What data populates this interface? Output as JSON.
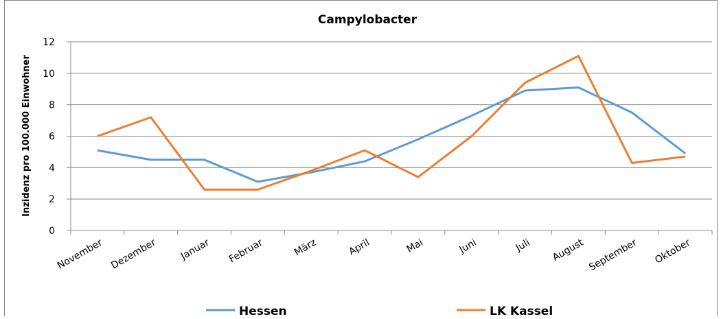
{
  "chart_data": {
    "type": "line",
    "title": "Campylobacter",
    "y_label": "Inzidenz pro 100.000 Einwohner",
    "categories": [
      "November",
      "Dezember",
      "Januar",
      "Februar",
      "März",
      "April",
      "Mai",
      "Juni",
      "Juli",
      "August",
      "September",
      "Oktober"
    ],
    "series": [
      {
        "name": "Hessen",
        "color": "#5b9bd5",
        "values": [
          5.1,
          4.5,
          4.5,
          3.1,
          3.7,
          4.4,
          5.8,
          7.3,
          8.9,
          9.1,
          7.5,
          4.9
        ]
      },
      {
        "name": "LK Kassel",
        "color": "#ed7d31",
        "values": [
          6.0,
          7.2,
          2.6,
          2.6,
          3.8,
          5.1,
          3.4,
          6.0,
          9.4,
          11.1,
          4.3,
          4.7
        ]
      }
    ],
    "ylim": [
      0,
      12
    ],
    "yticks": [
      0,
      2,
      4,
      6,
      8,
      10,
      12
    ],
    "grid": true,
    "legend": "bottom"
  }
}
